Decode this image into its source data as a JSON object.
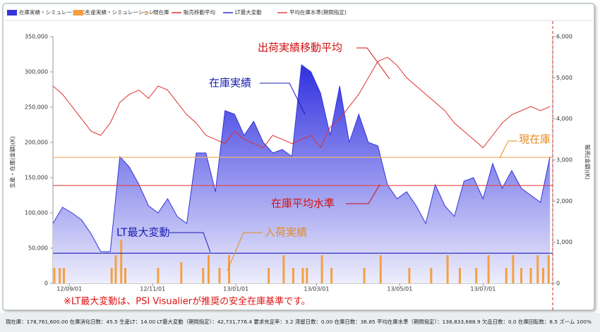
{
  "chart_data": {
    "type": "combo",
    "y_label": "生産・在庫(金額)(K)",
    "y2_label": "販売(金額)(K)",
    "x": [
      "2012-08-20",
      "2012-08-27",
      "2012-09-03",
      "2012-09-10",
      "2012-09-17",
      "2012-09-24",
      "2012-10-01",
      "2012-10-08",
      "2012-10-15",
      "2012-10-22",
      "2012-10-29",
      "2012-11-05",
      "2012-11-12",
      "2012-11-19",
      "2012-11-26",
      "2012-12-03",
      "2012-12-10",
      "2012-12-17",
      "2012-12-24",
      "2012-12-31",
      "2013-01-07",
      "2013-01-14",
      "2013-01-21",
      "2013-01-28",
      "2013-02-04",
      "2013-02-11",
      "2013-02-18",
      "2013-02-25",
      "2013-03-04",
      "2013-03-11",
      "2013-03-18",
      "2013-03-25",
      "2013-04-01",
      "2013-04-08",
      "2013-04-15",
      "2013-04-22",
      "2013-04-29",
      "2013-05-06",
      "2013-05-13",
      "2013-05-20",
      "2013-05-27",
      "2013-06-03",
      "2013-06-10",
      "2013-06-17",
      "2013-06-24",
      "2013-07-01",
      "2013-07-08",
      "2013-07-15",
      "2013-07-22",
      "2013-07-29",
      "2013-08-05",
      "2013-08-12",
      "2013-08-19"
    ],
    "xlim": [
      "2012-08-20",
      "2013-08-21"
    ],
    "xticks": [
      {
        "value": "2012-09-01",
        "label": "12/09/01"
      },
      {
        "value": "2012-11-01",
        "label": "12/11/01"
      },
      {
        "value": "2013-01-01",
        "label": "13/01/01"
      },
      {
        "value": "2013-03-01",
        "label": "13/03/01"
      },
      {
        "value": "2013-05-01",
        "label": "13/05/01"
      },
      {
        "value": "2013-07-01",
        "label": "13/07/01"
      }
    ],
    "ylim": [
      0,
      350000
    ],
    "yticks": [
      0,
      {
        "value": 50000,
        "label": "50,000"
      },
      {
        "value": 100000,
        "label": "100,000"
      },
      {
        "value": 150000,
        "label": "150,000"
      },
      {
        "value": 200000,
        "label": "200,000"
      },
      {
        "value": 250000,
        "label": "250,000"
      },
      {
        "value": 300000,
        "label": "300,000"
      },
      {
        "value": 350000,
        "label": "350,000"
      }
    ],
    "y2lim": [
      0,
      6000
    ],
    "y2ticks": [
      0,
      {
        "value": 1000,
        "label": "1,000"
      },
      {
        "value": 2000,
        "label": "2,000"
      },
      {
        "value": 3000,
        "label": "3,000"
      },
      {
        "value": 4000,
        "label": "4,000"
      },
      {
        "value": 5000,
        "label": "5,000"
      },
      {
        "value": 6000,
        "label": "6,000"
      }
    ],
    "series": [
      {
        "name": "在庫実績・シミュレーション",
        "type": "area",
        "color": "#3434dc",
        "values": [
          85000,
          108000,
          100000,
          90000,
          70000,
          45000,
          45000,
          180000,
          165000,
          140000,
          110000,
          100000,
          120000,
          95000,
          85000,
          185000,
          185000,
          130000,
          245000,
          240000,
          210000,
          230000,
          200000,
          185000,
          190000,
          180000,
          310000,
          300000,
          270000,
          210000,
          280000,
          200000,
          240000,
          200000,
          195000,
          140000,
          120000,
          130000,
          110000,
          85000,
          140000,
          110000,
          95000,
          145000,
          150000,
          120000,
          170000,
          135000,
          160000,
          135000,
          125000,
          115000,
          180000
        ]
      },
      {
        "name": "生産実績・シミュレーション",
        "type": "bar",
        "color": "#f5a040",
        "x": [
          "2012-08-21",
          "2012-08-25",
          "2012-08-28",
          "2012-10-02",
          "2012-10-05",
          "2012-10-09",
          "2012-10-12",
          "2012-11-05",
          "2012-11-22",
          "2012-12-08",
          "2012-12-12",
          "2012-12-20",
          "2012-12-27",
          "2013-01-25",
          "2013-02-05",
          "2013-02-12",
          "2013-02-19",
          "2013-02-22",
          "2013-03-05",
          "2013-03-12",
          "2013-04-05",
          "2013-04-17",
          "2013-05-08",
          "2013-05-24",
          "2013-06-05",
          "2013-06-14",
          "2013-06-26",
          "2013-07-05",
          "2013-07-18",
          "2013-07-23",
          "2013-07-29",
          "2013-08-05",
          "2013-08-10",
          "2013-08-14",
          "2013-08-18"
        ],
        "values": [
          22000,
          22000,
          22000,
          22000,
          40000,
          62000,
          22000,
          22000,
          30000,
          22000,
          40000,
          22000,
          40000,
          22000,
          40000,
          22000,
          22000,
          22000,
          40000,
          22000,
          22000,
          40000,
          22000,
          22000,
          40000,
          22000,
          22000,
          40000,
          22000,
          40000,
          22000,
          22000,
          40000,
          22000,
          40000
        ]
      },
      {
        "name": "現在庫",
        "type": "hline",
        "color": "#f0b070",
        "value": 178761.6
      },
      {
        "name": "販売移動平均",
        "type": "line",
        "axis": "y2",
        "color": "#e03030",
        "values": [
          4800,
          4600,
          4300,
          4000,
          3700,
          3600,
          3900,
          4400,
          4600,
          4700,
          4500,
          4800,
          4700,
          4400,
          4100,
          3900,
          3600,
          3500,
          3400,
          3700,
          3500,
          3400,
          3300,
          3600,
          3500,
          3400,
          3500,
          3600,
          3300,
          3800,
          4000,
          4300,
          4600,
          5000,
          5400,
          5500,
          5300,
          5000,
          4800,
          4600,
          4400,
          4200,
          3900,
          3700,
          3500,
          3300,
          3600,
          3900,
          4100,
          4200,
          4300,
          4200,
          4300
        ]
      },
      {
        "name": "LT最大変動",
        "type": "hline",
        "color": "#3030c0",
        "value": 42731.8
      },
      {
        "name": "平均在庫水準(期間指定)",
        "type": "hline",
        "color": "#e04848",
        "value": 138833.7
      }
    ],
    "annotations": [
      {
        "text": "出荷実績移動平均",
        "color": "#d01010"
      },
      {
        "text": "在庫実績",
        "color": "#1c1cb0"
      },
      {
        "text": "現在庫",
        "color": "#e88a20"
      },
      {
        "text": "在庫平均水準",
        "color": "#d01010"
      },
      {
        "text": "LT最大変動",
        "color": "#1c1cb0"
      },
      {
        "text": "入荷実績",
        "color": "#e88a20"
      }
    ],
    "note": "※LT最大変動は、PSI Visualierが推奨の安全在庫基準です。",
    "status_bar": "現在庫：178,761,600.00 在庫消化日数：45.5 生産LT：14.00 LT最大変動（期間指定）：42,731,776.4 要求充足率：3.2 滞留日数：0.00 在庫日数：36.85 平均在庫水準（期間指定）：138,833,688.9 欠品日数：0.0 在庫回転数：8.5 ズーム 100%"
  }
}
